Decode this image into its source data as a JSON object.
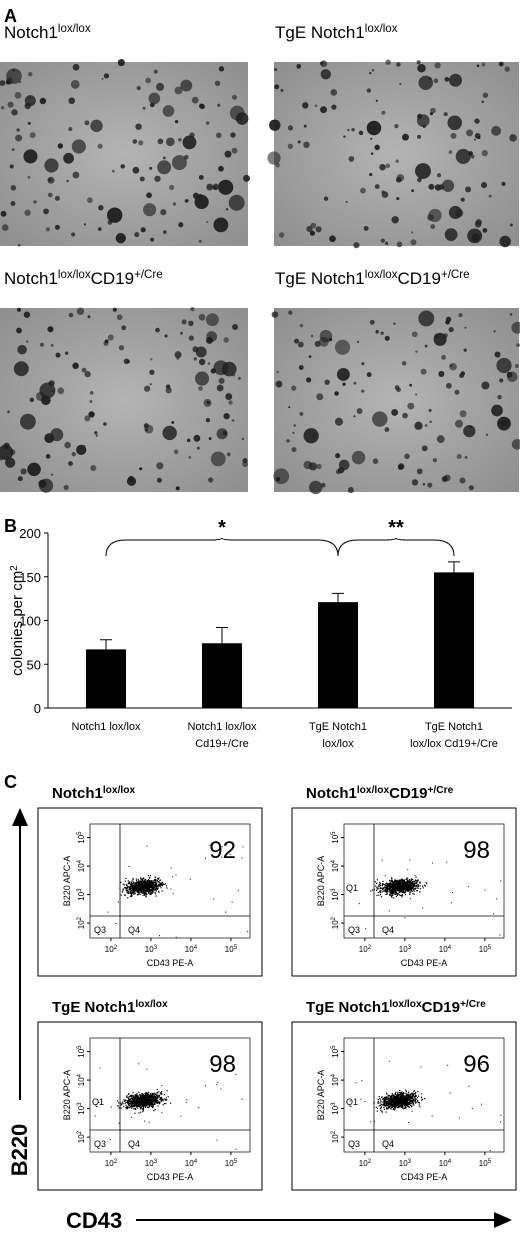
{
  "panels": {
    "a": "A",
    "b": "B",
    "c": "C"
  },
  "images": [
    {
      "title": [
        "Notch1",
        "lox/lox"
      ]
    },
    {
      "title": [
        "TgE Notch1",
        "lox/lox"
      ]
    },
    {
      "title": [
        "Notch1",
        "lox/lox",
        "CD19",
        "+/Cre"
      ]
    },
    {
      "title": [
        "TgE Notch1",
        "lox/lox",
        "CD19",
        "+/Cre"
      ]
    }
  ],
  "chart_data": {
    "type": "bar",
    "y_label": [
      "colonies per cm",
      "2"
    ],
    "categories": [
      [
        "Notch1 lox/lox"
      ],
      [
        "Notch1 lox/lox",
        "Cd19+/Cre"
      ],
      [
        "TgE Notch1",
        "lox/lox"
      ],
      [
        "TgE Notch1",
        "lox/lox Cd19+/Cre"
      ]
    ],
    "values": [
      67,
      74,
      121,
      155
    ],
    "errors": [
      11,
      18,
      10,
      12
    ],
    "color": "#000000",
    "ylim": [
      0,
      200
    ],
    "yticks": [
      0,
      50,
      100,
      150,
      200
    ],
    "annotations": [
      {
        "text": "*",
        "from": 0,
        "to": 2
      },
      {
        "text": "**",
        "from": 2,
        "to": 3
      }
    ]
  },
  "flow": {
    "y_axis": "B220",
    "x_axis": "CD43",
    "xlim": [
      30,
      300000
    ],
    "ylim": [
      30,
      300000
    ],
    "xticks": [
      {
        "value": 100,
        "label": [
          "10",
          "2"
        ]
      },
      {
        "value": 1000,
        "label": [
          "10",
          "3"
        ]
      },
      {
        "value": 10000,
        "label": [
          "10",
          "4"
        ]
      },
      {
        "value": 100000,
        "label": [
          "10",
          "5"
        ]
      }
    ],
    "yticks": [
      {
        "value": 100,
        "label": [
          "10",
          "2"
        ]
      },
      {
        "value": 1000,
        "label": [
          "10",
          "3"
        ]
      },
      {
        "value": 10000,
        "label": [
          "10",
          "4"
        ]
      },
      {
        "value": 100000,
        "label": [
          "10",
          "5"
        ]
      }
    ],
    "plots": [
      {
        "title": [
          "Notch1",
          "lox/lox"
        ],
        "percent": 92,
        "x_label": "CD43 PE-A",
        "y_label": "B220 APC-A",
        "quadrants": [
          {
            "label": "Q3",
            "corner": "lower-left"
          },
          {
            "label": "Q4",
            "corner": "lower-right"
          }
        ]
      },
      {
        "title": [
          "Notch1",
          "lox/lox",
          "CD19",
          "+/Cre"
        ],
        "percent": 98,
        "x_label": "CD43 PE-A",
        "y_label": "B220 APC-A",
        "quadrants": [
          {
            "label": "Q1",
            "corner": "left"
          },
          {
            "label": "Q3",
            "corner": "lower-left"
          },
          {
            "label": "Q4",
            "corner": "lower-right"
          }
        ]
      },
      {
        "title": [
          "TgE Notch1",
          "lox/lox"
        ],
        "percent": 98,
        "x_label": "CD43 PE-A",
        "y_label": "B220 APC-A",
        "quadrants": [
          {
            "label": "Q1",
            "corner": "left"
          },
          {
            "label": "Q3",
            "corner": "lower-left"
          },
          {
            "label": "Q4",
            "corner": "lower-right"
          }
        ]
      },
      {
        "title": [
          "TgE Notch1",
          "lox/lox",
          "CD19",
          "+/Cre"
        ],
        "percent": 96,
        "x_label": "CD43 PE-A",
        "y_label": "B220 APC-A",
        "quadrants": [
          {
            "label": "Q1",
            "corner": "left"
          },
          {
            "label": "Q3",
            "corner": "lower-left"
          },
          {
            "label": "Q4",
            "corner": "lower-right"
          }
        ]
      }
    ]
  }
}
